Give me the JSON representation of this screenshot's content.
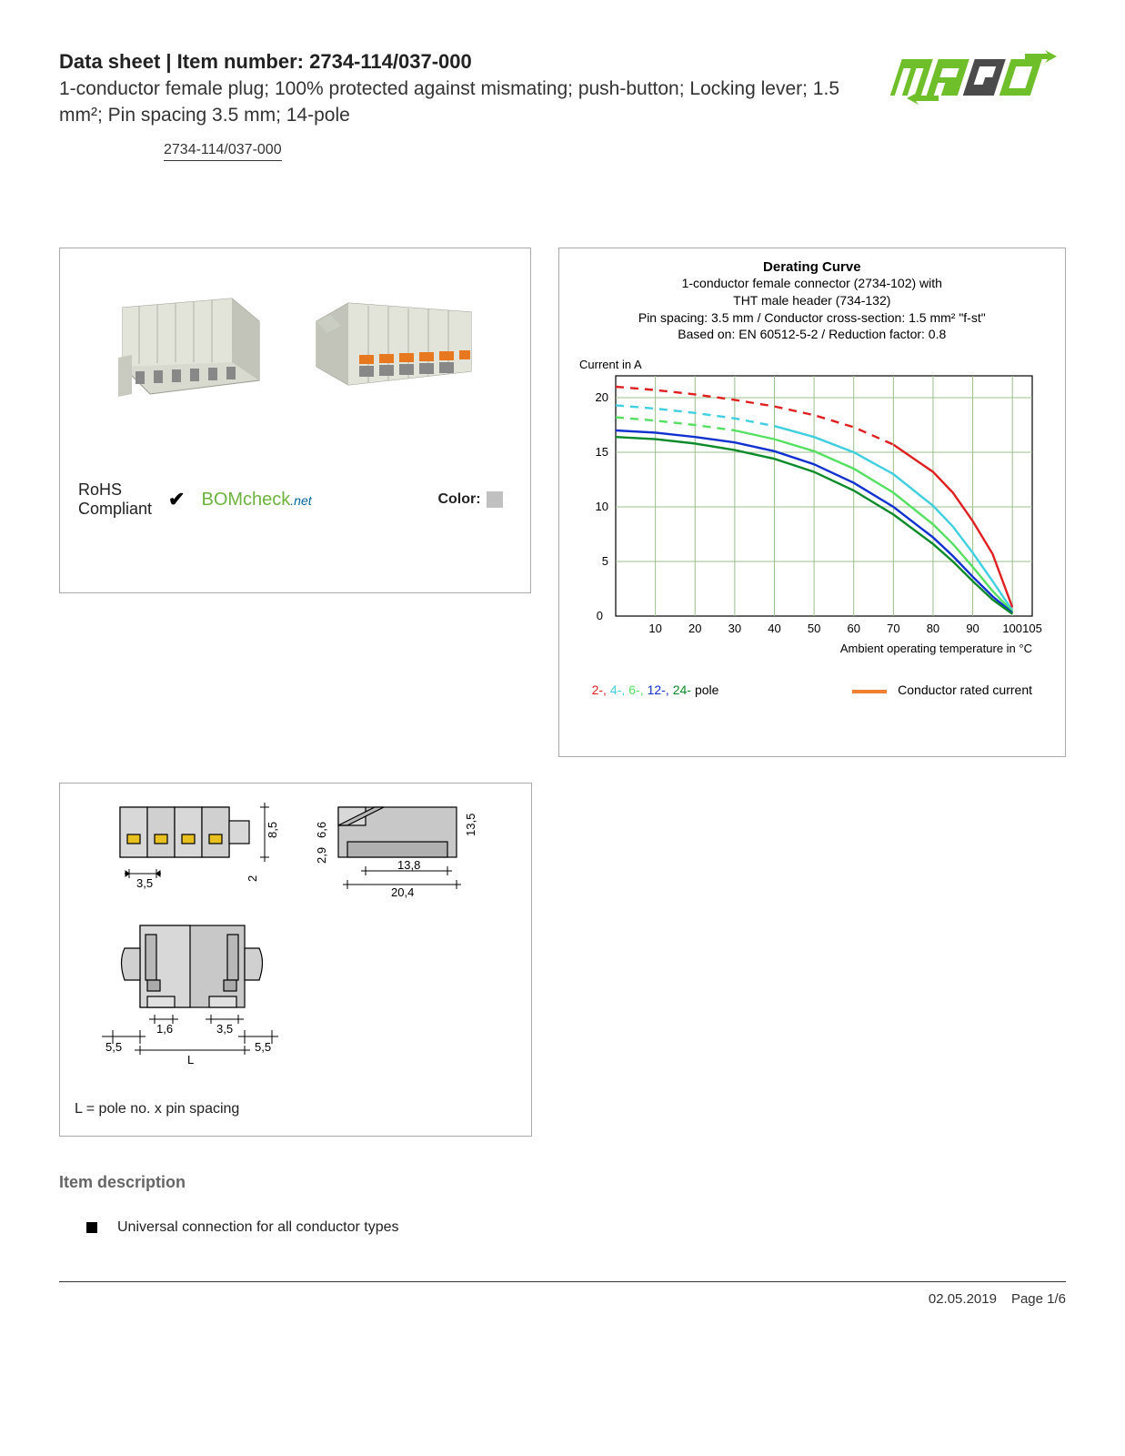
{
  "header": {
    "title_prefix": "Data sheet  |  Item number: ",
    "item_number": "2734-114/037-000",
    "subtitle": "1-conductor female plug; 100% protected against mismating; push-button; Locking lever; 1.5 mm²; Pin spacing 3.5 mm; 14-pole",
    "link_text": "2734-114/037-000"
  },
  "compliance": {
    "rohs_line1": "RoHS",
    "rohs_line2": "Compliant",
    "check": "✔",
    "bom_prefix": "BOM",
    "bom_mid": "check",
    "bom_suffix": ".net",
    "color_label": "Color:",
    "swatch_color": "#c6c6c6"
  },
  "chart": {
    "title": "Derating Curve",
    "sub1": "1-conductor female connector (2734-102) with",
    "sub2": "THT male header (734-132)",
    "sub3": "Pin spacing: 3.5 mm / Conductor cross-section: 1.5 mm² \"f-st\"",
    "sub4": "Based on: EN 60512-5-2 / Reduction factor: 0.8",
    "y_label": "Current in A",
    "x_label": "Ambient operating temperature in °C",
    "xlim": [
      0,
      105
    ],
    "ylim": [
      0,
      22
    ],
    "xticks": [
      10,
      20,
      30,
      40,
      50,
      60,
      70,
      80,
      90,
      100,
      105
    ],
    "yticks": [
      0,
      5,
      10,
      15,
      20
    ],
    "grid_color": "#9bbf8a",
    "bg_color": "#ffffff",
    "series": [
      {
        "name": "2-pole",
        "color": "#e02020",
        "dash_until_x": 70,
        "points": [
          [
            0,
            21
          ],
          [
            10,
            20.7
          ],
          [
            20,
            20.3
          ],
          [
            30,
            19.8
          ],
          [
            40,
            19.2
          ],
          [
            50,
            18.4
          ],
          [
            60,
            17.3
          ],
          [
            70,
            15.7
          ],
          [
            80,
            13.2
          ],
          [
            85,
            11.3
          ],
          [
            90,
            8.7
          ],
          [
            95,
            5.7
          ],
          [
            100,
            0.8
          ]
        ]
      },
      {
        "name": "4-pole",
        "color": "#40cfe0",
        "dash_until_x": 40,
        "points": [
          [
            0,
            19.3
          ],
          [
            10,
            19
          ],
          [
            20,
            18.6
          ],
          [
            30,
            18.1
          ],
          [
            40,
            17.4
          ],
          [
            50,
            16.4
          ],
          [
            60,
            15
          ],
          [
            70,
            13
          ],
          [
            80,
            10.1
          ],
          [
            85,
            8.2
          ],
          [
            90,
            5.8
          ],
          [
            95,
            3.2
          ],
          [
            100,
            0.5
          ]
        ]
      },
      {
        "name": "6-pole",
        "color": "#55e060",
        "dash_until_x": 30,
        "points": [
          [
            0,
            18.2
          ],
          [
            10,
            17.9
          ],
          [
            20,
            17.5
          ],
          [
            30,
            17
          ],
          [
            40,
            16.2
          ],
          [
            50,
            15.1
          ],
          [
            60,
            13.5
          ],
          [
            70,
            11.3
          ],
          [
            80,
            8.4
          ],
          [
            85,
            6.6
          ],
          [
            90,
            4.5
          ],
          [
            95,
            2.3
          ],
          [
            100,
            0.4
          ]
        ]
      },
      {
        "name": "12-pole",
        "color": "#1030d0",
        "dash_until_x": 0,
        "points": [
          [
            0,
            17
          ],
          [
            10,
            16.8
          ],
          [
            20,
            16.4
          ],
          [
            30,
            15.9
          ],
          [
            40,
            15.1
          ],
          [
            50,
            13.9
          ],
          [
            60,
            12.2
          ],
          [
            70,
            10
          ],
          [
            80,
            7.2
          ],
          [
            85,
            5.5
          ],
          [
            90,
            3.6
          ],
          [
            95,
            1.8
          ],
          [
            100,
            0.3
          ]
        ]
      },
      {
        "name": "24-pole",
        "color": "#0a8a2a",
        "dash_until_x": 0,
        "points": [
          [
            0,
            16.4
          ],
          [
            10,
            16.2
          ],
          [
            20,
            15.8
          ],
          [
            30,
            15.2
          ],
          [
            40,
            14.4
          ],
          [
            50,
            13.2
          ],
          [
            60,
            11.5
          ],
          [
            70,
            9.3
          ],
          [
            80,
            6.6
          ],
          [
            85,
            5
          ],
          [
            90,
            3.2
          ],
          [
            95,
            1.5
          ],
          [
            100,
            0.2
          ]
        ]
      }
    ],
    "legend_poles": [
      {
        "label": "2-,",
        "color": "#e02020"
      },
      {
        "label": "4-,",
        "color": "#40cfe0"
      },
      {
        "label": "6-,",
        "color": "#55e060"
      },
      {
        "label": "12-,",
        "color": "#1030d0"
      },
      {
        "label": "24-",
        "color": "#0a8a2a"
      }
    ],
    "legend_suffix": " pole",
    "rated_label": "Conductor rated current",
    "rated_color": "#f08030"
  },
  "dimensions": {
    "note": "L = pole no. x pin spacing",
    "values": [
      "3,5",
      "8,5",
      "2",
      "6,6",
      "2,9",
      "13,8",
      "20,4",
      "13,5",
      "1,6",
      "3,5",
      "5,5",
      "5,5",
      "L"
    ]
  },
  "description": {
    "heading": "Item description",
    "items": [
      "Universal connection for all conductor types"
    ]
  },
  "footer": {
    "date": "02.05.2019",
    "page": "Page 1/6"
  },
  "colors": {
    "logo_green": "#6fbf2a",
    "logo_dark": "#4a4a4a",
    "connector_body": "#d8dad0",
    "connector_shadow": "#b8bab0",
    "connector_button": "#e87820"
  }
}
